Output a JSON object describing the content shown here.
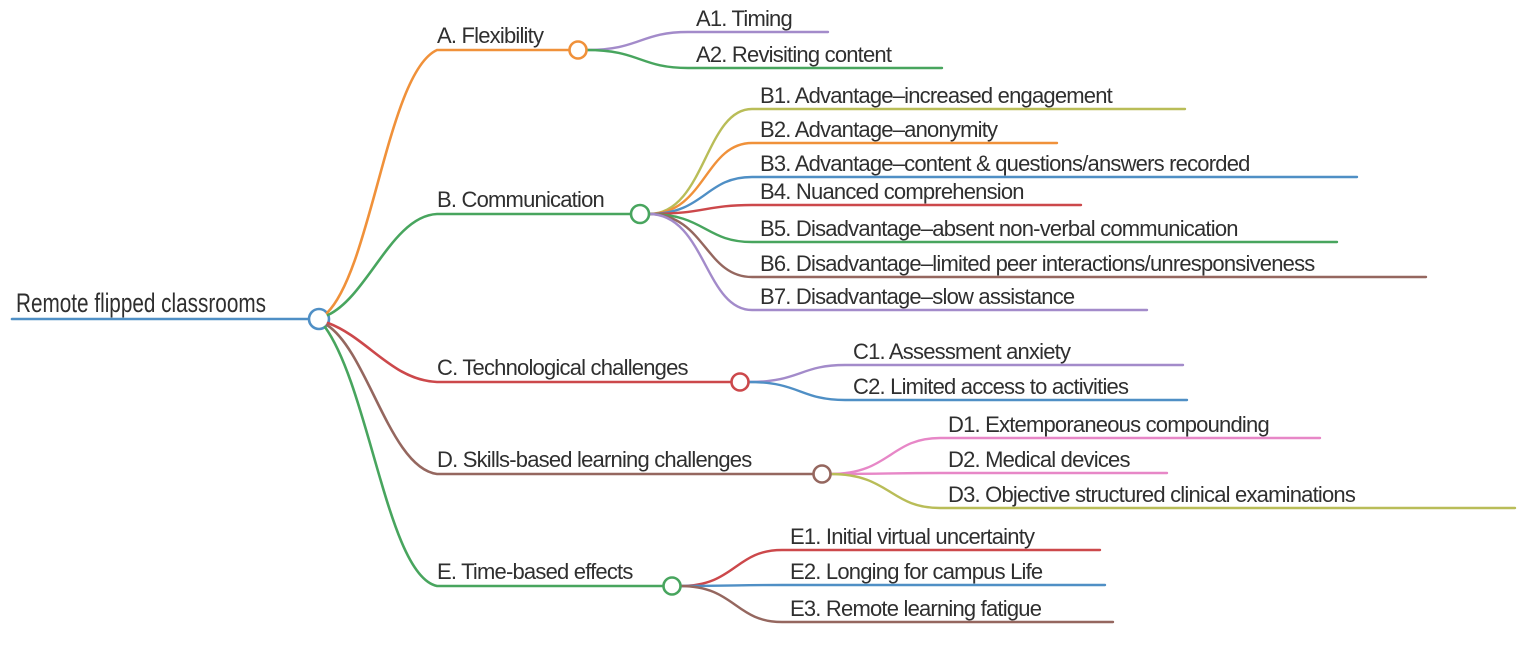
{
  "figure_type": "mind-map",
  "background": "#ffffff",
  "text_color": "#2f2f2f",
  "palette": {
    "blue": "#4f8fc5",
    "orange": "#f0913a",
    "green": "#48a55e",
    "red": "#cc484b",
    "brown": "#95675f",
    "purple": "#a38bca",
    "olive": "#b9bd58",
    "pink": "#e787c7"
  },
  "root": {
    "id": "root",
    "label": "Remote flipped classrooms",
    "color": "blue"
  },
  "branches": [
    {
      "id": "A",
      "label": "A. Flexibility",
      "color": "orange",
      "children": [
        {
          "id": "A1",
          "label": "A1. Timing",
          "color": "purple"
        },
        {
          "id": "A2",
          "label": "A2. Revisiting content",
          "color": "green"
        }
      ]
    },
    {
      "id": "B",
      "label": "B. Communication",
      "color": "green",
      "children": [
        {
          "id": "B1",
          "label": "B1. Advantage–increased engagement",
          "color": "olive"
        },
        {
          "id": "B2",
          "label": "B2. Advantage–anonymity",
          "color": "orange"
        },
        {
          "id": "B3",
          "label": "B3. Advantage–content & questions/answers recorded",
          "color": "blue"
        },
        {
          "id": "B4",
          "label": "B4. Nuanced comprehension",
          "color": "red"
        },
        {
          "id": "B5",
          "label": "B5. Disadvantage–absent non-verbal communication",
          "color": "green"
        },
        {
          "id": "B6",
          "label": "B6. Disadvantage–limited peer interactions/unresponsiveness",
          "color": "brown"
        },
        {
          "id": "B7",
          "label": "B7. Disadvantage–slow assistance",
          "color": "purple"
        }
      ]
    },
    {
      "id": "C",
      "label": "C. Technological challenges",
      "color": "red",
      "children": [
        {
          "id": "C1",
          "label": "C1. Assessment anxiety",
          "color": "purple"
        },
        {
          "id": "C2",
          "label": "C2. Limited access to activities",
          "color": "blue"
        }
      ]
    },
    {
      "id": "D",
      "label": "D. Skills-based learning challenges",
      "color": "brown",
      "children": [
        {
          "id": "D1",
          "label": "D1. Extemporaneous compounding",
          "color": "pink"
        },
        {
          "id": "D2",
          "label": "D2. Medical devices",
          "color": "pink"
        },
        {
          "id": "D3",
          "label": "D3. Objective structured clinical examinations",
          "color": "olive"
        }
      ]
    },
    {
      "id": "E",
      "label": "E. Time-based effects",
      "color": "green",
      "children": [
        {
          "id": "E1",
          "label": "E1. Initial virtual uncertainty",
          "color": "red"
        },
        {
          "id": "E2",
          "label": "E2. Longing for campus Life",
          "color": "blue"
        },
        {
          "id": "E3",
          "label": "E3. Remote learning fatigue",
          "color": "brown"
        }
      ]
    }
  ]
}
